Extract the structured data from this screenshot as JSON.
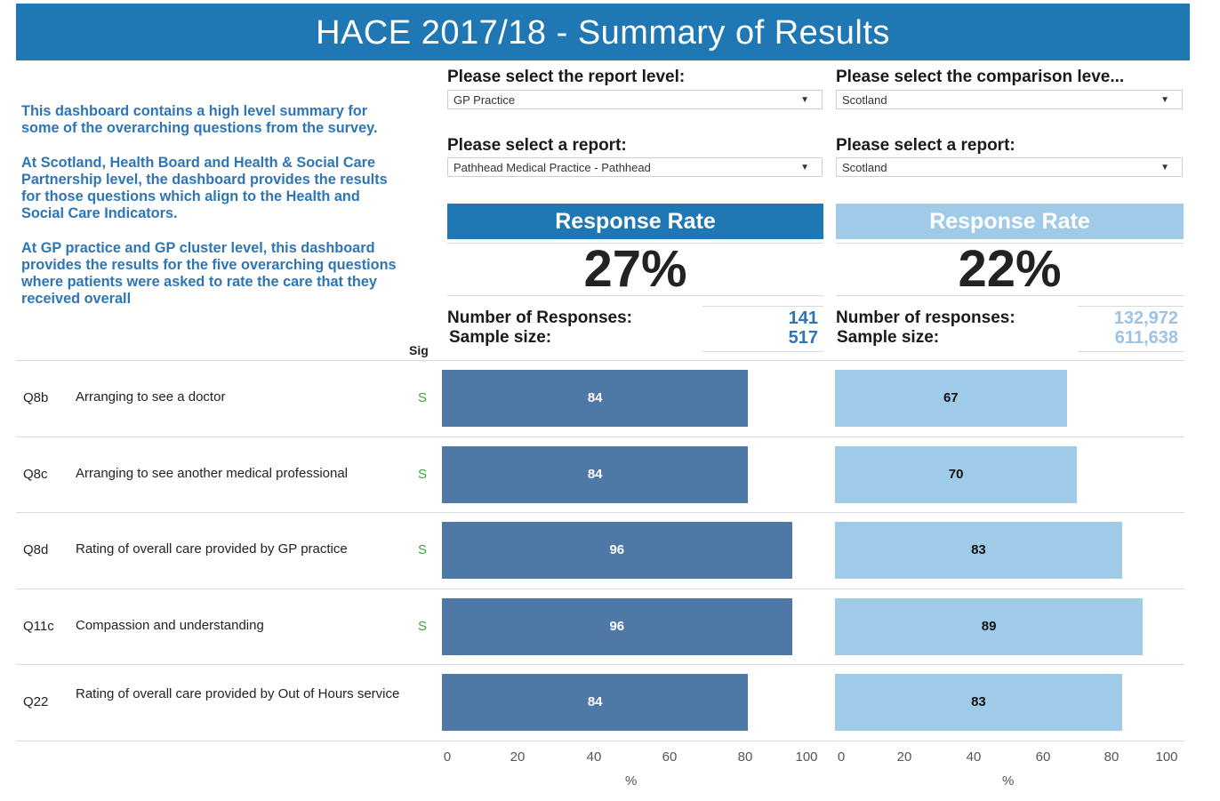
{
  "banner": {
    "title": "HACE 2017/18 - Summary of Results"
  },
  "intro": {
    "paragraphs": [
      "This dashboard contains a high level summary for some of the overarching questions from the survey.",
      "At Scotland, Health Board and Health & Social Care Partnership level, the dashboard provides the results for those questions which align to the Health and Social Care Indicators.",
      "At GP practice and GP cluster level, this dashboard provides the results for the five overarching questions where patients were asked to rate the care that they received overall"
    ]
  },
  "filters": {
    "report_level": {
      "label": "Please select the report level:",
      "value": "GP Practice"
    },
    "comparison_level": {
      "label": "Please select the comparison leve...",
      "value": "Scotland"
    },
    "report_left": {
      "label": "Please select a report:",
      "value": "Pathhead Medical Practice - Pathhead"
    },
    "report_right": {
      "label": "Please select a report:",
      "value": "Scotland"
    }
  },
  "response_rate": {
    "left": {
      "title": "Response Rate",
      "value": "27%",
      "responses_label": "Number of Responses:",
      "responses": "141",
      "sample_label": "Sample size:",
      "sample": "517"
    },
    "right": {
      "title": "Response Rate",
      "value": "22%",
      "responses_label": "Number of responses:",
      "responses": "132,972",
      "sample_label": "Sample size:",
      "sample": "611,638"
    }
  },
  "table": {
    "sig_header": "Sig",
    "rows": [
      {
        "code": "Q8b",
        "text": "Arranging to see a doctor",
        "sig": "S"
      },
      {
        "code": "Q8c",
        "text": "Arranging to see another medical professional",
        "sig": "S"
      },
      {
        "code": "Q8d",
        "text": "Rating of overall care provided by GP practice",
        "sig": "S"
      },
      {
        "code": "Q11c",
        "text": "Compassion and understanding",
        "sig": "S"
      },
      {
        "code": "Q22",
        "text": "Rating of overall care provided by Out of Hours service",
        "sig": ""
      }
    ]
  },
  "chart_data": [
    {
      "type": "bar",
      "orientation": "horizontal",
      "categories": [
        "Q8b",
        "Q8c",
        "Q8d",
        "Q11c",
        "Q22"
      ],
      "values": [
        84,
        84,
        96,
        96,
        84
      ],
      "xlabel": "%",
      "xlim": [
        0,
        100
      ],
      "ticks": [
        "0",
        "20",
        "40",
        "60",
        "80",
        "100"
      ],
      "color": "#4e79a7"
    },
    {
      "type": "bar",
      "orientation": "horizontal",
      "categories": [
        "Q8b",
        "Q8c",
        "Q8d",
        "Q11c",
        "Q22"
      ],
      "values": [
        67,
        70,
        83,
        89,
        83
      ],
      "xlabel": "%",
      "xlim": [
        0,
        100
      ],
      "ticks": [
        "0",
        "20",
        "40",
        "60",
        "80",
        "100"
      ],
      "color": "#a0cbe8"
    }
  ],
  "colors": {
    "banner": "#1f77b4",
    "left_accent": "#1f77b4",
    "right_accent": "#a0cbe8",
    "left_stat": "#2e75b6",
    "right_stat": "#9cc3e4",
    "sig": "#3aa63a"
  }
}
